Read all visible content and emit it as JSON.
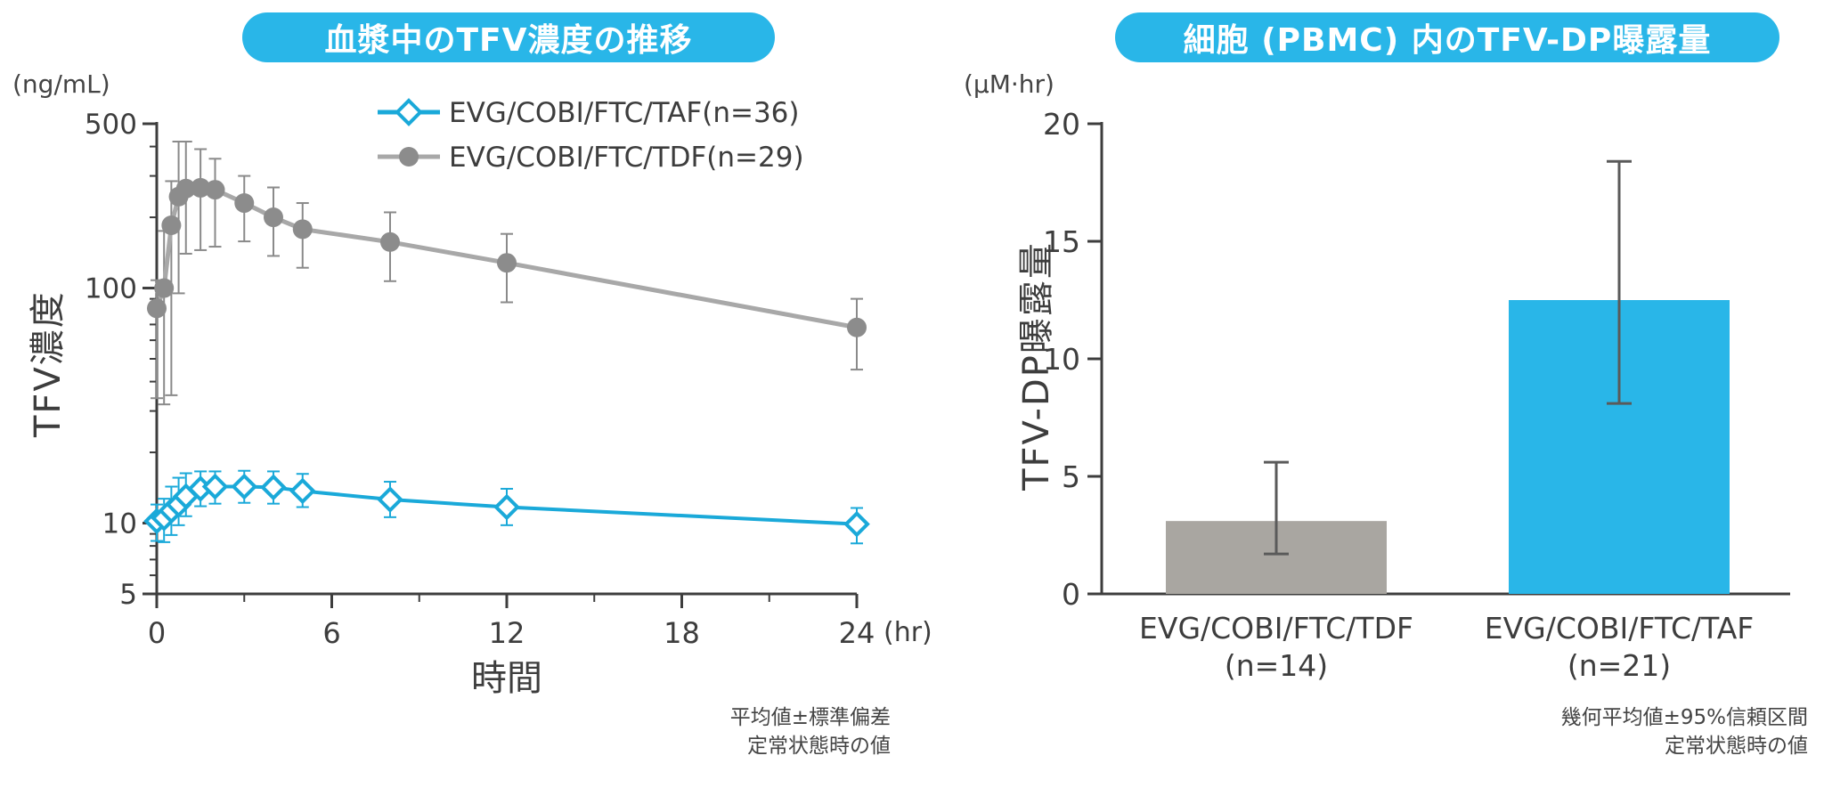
{
  "colors": {
    "accent": "#1aa9d9",
    "pill_blue": "#29b6e8",
    "tdf_gray": "#a8a8a8",
    "tdf_marker": "#8c8c8c",
    "taf_bar": "#29b6e8",
    "tdf_bar": "#a9a6a1"
  },
  "left_panel": {
    "title": "血漿中のTFV濃度の推移",
    "y_unit": "(ng/mL)",
    "x_unit": "(hr)",
    "note_line1": "平均値±標準偏差",
    "note_line2": "定常状態時の値"
  },
  "right_panel": {
    "title": "細胞 (PBMC) 内のTFV-DP曝露量",
    "y_unit": "(μM·hr)",
    "note_line1": "幾何平均値±95%信頼区間",
    "note_line2": "定常状態時の値"
  },
  "chart_data": [
    {
      "type": "line",
      "title": "血漿中のTFV濃度の推移",
      "xlabel": "時間",
      "ylabel": "TFV濃度",
      "x_unit": "(hr)",
      "y_unit": "(ng/mL)",
      "y_scale": "log",
      "xlim": [
        0,
        24
      ],
      "ylim": [
        5,
        500
      ],
      "x_ticks": [
        0,
        6,
        12,
        18,
        24
      ],
      "x_tick_labels": [
        "0",
        "6",
        "12",
        "18",
        "24"
      ],
      "y_ticks": [
        5,
        10,
        100,
        500
      ],
      "y_tick_labels": [
        "5",
        "10",
        "100",
        "500"
      ],
      "legend_position": "top-right",
      "series": [
        {
          "name": "EVG/COBI/FTC/TAF(n=36)",
          "marker": "open-diamond",
          "color": "#1aa9d9",
          "x": [
            0,
            0.25,
            0.5,
            0.75,
            1,
            1.5,
            2,
            3,
            4,
            5,
            8,
            12,
            24
          ],
          "y": [
            10.2,
            10.5,
            11.3,
            12.0,
            13.0,
            14.0,
            14.3,
            14.3,
            14.2,
            13.7,
            12.6,
            11.7,
            9.9
          ],
          "err_low": [
            8.4,
            8.3,
            8.9,
            9.8,
            10.7,
            11.8,
            12.1,
            12.2,
            12.1,
            11.7,
            10.6,
            9.8,
            8.2
          ],
          "err_high": [
            12.0,
            12.7,
            14.3,
            15.6,
            16.3,
            16.6,
            16.6,
            16.7,
            16.6,
            16.2,
            15.0,
            14.0,
            11.6
          ]
        },
        {
          "name": "EVG/COBI/FTC/TDF(n=29)",
          "marker": "filled-circle",
          "color": "#a8a8a8",
          "x": [
            0,
            0.25,
            0.5,
            0.75,
            1,
            1.5,
            2,
            3,
            4,
            5,
            8,
            12,
            24
          ],
          "y": [
            82,
            100,
            185,
            245,
            265,
            267,
            262,
            230,
            200,
            178,
            157,
            128,
            68
          ],
          "err_low": [
            34,
            32,
            35,
            95,
            140,
            145,
            150,
            158,
            137,
            122,
            107,
            87,
            45
          ],
          "err_high": [
            108,
            175,
            285,
            420,
            420,
            390,
            355,
            300,
            268,
            230,
            210,
            170,
            90
          ]
        }
      ]
    },
    {
      "type": "bar",
      "title": "細胞 (PBMC) 内のTFV-DP曝露量",
      "xlabel": "",
      "ylabel": "TFV-DP曝露量",
      "y_unit": "(μM·hr)",
      "ylim": [
        0,
        20
      ],
      "y_ticks": [
        0,
        5,
        10,
        15,
        20
      ],
      "y_tick_labels": [
        "0",
        "5",
        "10",
        "15",
        "20"
      ],
      "categories": [
        "EVG/COBI/FTC/TDF",
        "EVG/COBI/FTC/TAF"
      ],
      "category_sublabels": [
        "(n=14)",
        "(n=21)"
      ],
      "values": [
        3.1,
        12.5
      ],
      "err_low": [
        1.7,
        8.1
      ],
      "err_high": [
        5.6,
        18.4
      ],
      "bar_colors": [
        "#a9a6a1",
        "#29b6e8"
      ]
    }
  ]
}
